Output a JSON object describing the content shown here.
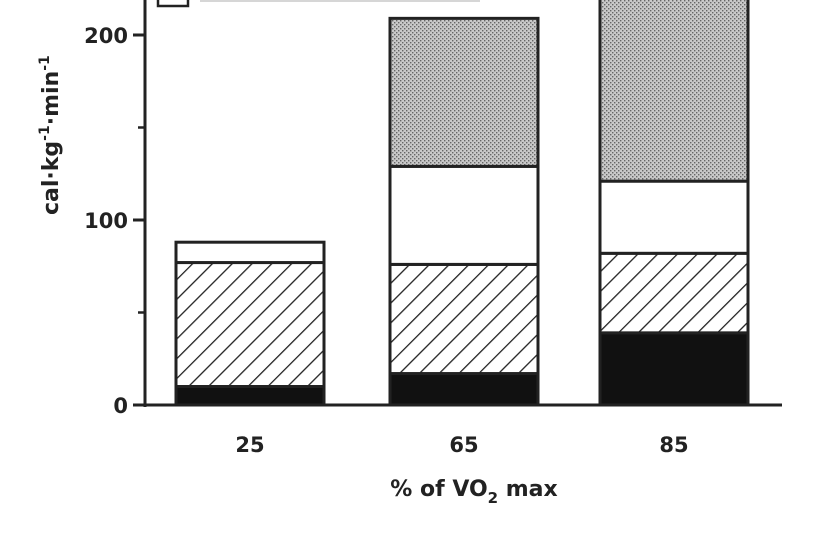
{
  "chart_data": {
    "type": "bar",
    "stacked": true,
    "categories": [
      "25",
      "65",
      "85"
    ],
    "series": [
      {
        "pattern": "solid-black",
        "values": [
          10,
          17,
          39
        ]
      },
      {
        "pattern": "diagonal-hatch",
        "values": [
          67,
          59,
          43
        ]
      },
      {
        "pattern": "white",
        "values": [
          11,
          53,
          39
        ]
      },
      {
        "pattern": "stippled-gray",
        "values": [
          0,
          80,
          101
        ]
      }
    ],
    "ylabel_main": "cal·kg",
    "ylabel_sup1": "-1",
    "ylabel_mid": "·min",
    "ylabel_sup2": "-1",
    "xlabel_main": "% of VO",
    "xlabel_sub": "2",
    "xlabel_end": " max",
    "yticks": [
      "0",
      "100",
      "200"
    ],
    "ytick_values": [
      0,
      100,
      200
    ],
    "ylim": [
      0,
      222
    ],
    "colors": {
      "solid": "#111111",
      "hatch": "#222222",
      "stipple": "#b5b5b5",
      "outline": "#222222",
      "white": "#ffffff"
    }
  }
}
